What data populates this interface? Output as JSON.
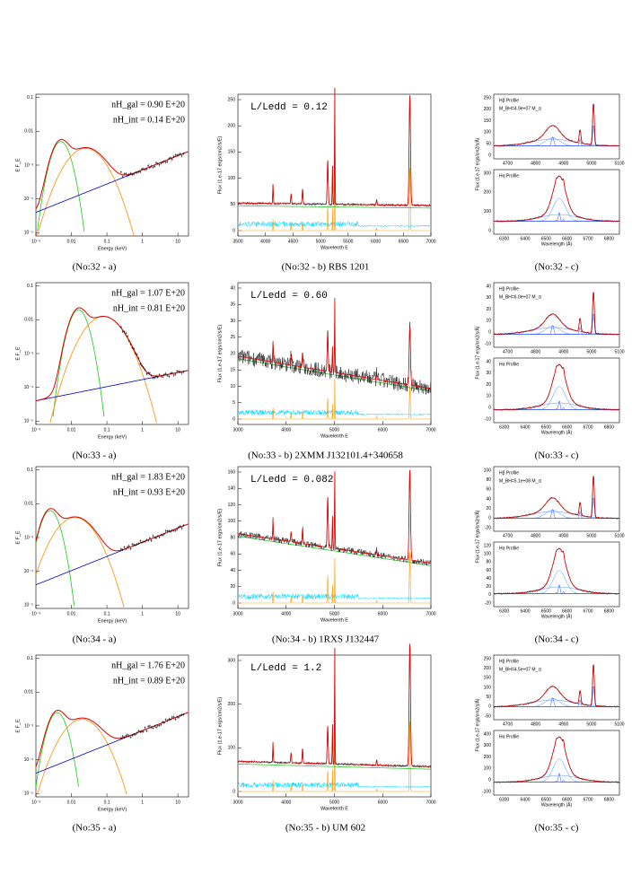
{
  "common": {
    "sed_xticks": [
      "10⁻³",
      "0.01",
      "0.1",
      "1",
      "10"
    ],
    "sed_yticks": [
      "0.1",
      "0.01",
      "10⁻³",
      "10⁻⁴",
      "10⁻⁵"
    ],
    "sed_xlabel": "Energy (keV)",
    "sed_ylabel": "E F_E",
    "spec_xlabel": "Wavelenth E",
    "spec_ylabel": "Flux (1.e-17 ergs/cm2/s/E)",
    "hb": "Hβ Profile",
    "ha": "Hα Profile",
    "prof_xlabel": "Wavelength (Å)",
    "prof_ylabel": "Flux (1.e-17 ergs/cm2/s/Å)",
    "hb_xticks": [
      "4700",
      "4800",
      "4900",
      "5000",
      "5100"
    ],
    "ha_xticks": [
      "6300",
      "6400",
      "6500",
      "6600",
      "6700",
      "6800"
    ]
  },
  "panels": [
    {
      "sed": {
        "nh_gal": "nH_gal = 0.90 E+20",
        "nh_int": "nH_int = 0.14 E+20",
        "caption": "(No:32 - a)"
      },
      "spectrum": {
        "l_ledd": "L/Ledd = 0.12",
        "xticks": [
          "3500",
          "4000",
          "4500",
          "5000",
          "5500",
          "6000",
          "6500",
          "7000"
        ],
        "yticks": [
          "0",
          "50",
          "100",
          "150",
          "200",
          "250"
        ],
        "caption": "(No:32 - b) RBS 1201"
      },
      "profile": {
        "mbh": "M_BH=4.9e+07 M_⊙",
        "hb_yticks": [
          "0",
          "50",
          "100",
          "150",
          "200",
          "250"
        ],
        "ha_yticks": [
          "0",
          "100",
          "200",
          "300"
        ],
        "caption": "(No:32 - c)"
      }
    },
    {
      "sed": {
        "nh_gal": "nH_gal = 1.07 E+20",
        "nh_int": "nH_int = 0.81 E+20",
        "caption": "(No:33 - a)"
      },
      "spectrum": {
        "l_ledd": "L/Ledd = 0.60",
        "xticks": [
          "3000",
          "4000",
          "5000",
          "6000",
          "7000"
        ],
        "yticks": [
          "0",
          "5",
          "10",
          "15",
          "20",
          "25",
          "30",
          "35",
          "40"
        ],
        "caption": "(No:33 - b) 2XMM J132101.4+340658"
      },
      "profile": {
        "mbh": "M_BH=6.0e+07 M_⊙",
        "hb_yticks": [
          "-10",
          "0",
          "10",
          "20",
          "30",
          "40"
        ],
        "ha_yticks": [
          "-10",
          "0",
          "10",
          "20",
          "30",
          "40"
        ],
        "caption": "(No:33 - c)"
      }
    },
    {
      "sed": {
        "nh_gal": "nH_gal = 1.83 E+20",
        "nh_int": "nH_int = 0.93 E+20",
        "caption": "(No:34 - a)"
      },
      "spectrum": {
        "l_ledd": "L/Ledd = 0.082",
        "xticks": [
          "3000",
          "4000",
          "5000",
          "6000",
          "7000"
        ],
        "yticks": [
          "0",
          "20",
          "40",
          "60",
          "80",
          "100",
          "120",
          "140",
          "160"
        ],
        "caption": "(No:34 - b) 1RXS J132447"
      },
      "profile": {
        "mbh": "M_BH=5.1e+08 M_⊙",
        "hb_yticks": [
          "-20",
          "0",
          "20",
          "40",
          "60",
          "80",
          "100"
        ],
        "ha_yticks": [
          "-20",
          "0",
          "20",
          "40",
          "60",
          "80",
          "100",
          "120"
        ],
        "caption": "(No:34 - c)"
      }
    },
    {
      "sed": {
        "nh_gal": "nH_gal = 1.76 E+20",
        "nh_int": "nH_int = 0.89 E+20",
        "caption": "(No:35 - a)"
      },
      "spectrum": {
        "l_ledd": "L/Ledd = 1.2",
        "xticks": [
          "3000",
          "4000",
          "5000",
          "6000",
          "7000"
        ],
        "yticks": [
          "0",
          "100",
          "200",
          "300"
        ],
        "caption": "(No:35 - b) UM 602"
      },
      "profile": {
        "mbh": "M_BH=4.5e+07 M_⊙",
        "hb_yticks": [
          "-50",
          "0",
          "50",
          "100",
          "150",
          "200",
          "250"
        ],
        "ha_yticks": [
          "-100",
          "0",
          "100",
          "200",
          "300",
          "400"
        ],
        "caption": "(No:35 - c)"
      }
    }
  ]
}
